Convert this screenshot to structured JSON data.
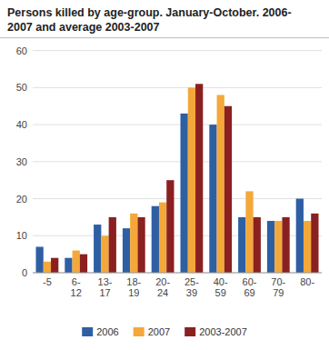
{
  "chart_data": {
    "type": "bar",
    "title": "Persons killed by age-group. January-October. 2006-\n2007 and average 2003-2007",
    "categories": [
      "-5",
      "6-\n12",
      "13-\n17",
      "18-\n19",
      "20-\n24",
      "25-\n39",
      "40-\n59",
      "60-\n69",
      "70-\n79",
      "80-"
    ],
    "series": [
      {
        "name": "2006",
        "color": "#2E5FA3",
        "values": [
          7,
          4,
          13,
          12,
          18,
          43,
          40,
          15,
          14,
          20
        ]
      },
      {
        "name": "2007",
        "color": "#F4A83A",
        "values": [
          3,
          6,
          10,
          16,
          19,
          50,
          48,
          22,
          14,
          14
        ]
      },
      {
        "name": "2003-2007",
        "color": "#8B2020",
        "values": [
          4,
          5,
          15,
          15,
          25,
          51,
          45,
          15,
          15,
          16
        ]
      }
    ],
    "ylim": [
      0,
      60
    ],
    "yticks": [
      0,
      10,
      20,
      30,
      40,
      50,
      60
    ],
    "grid": true,
    "legend": "bottom"
  }
}
